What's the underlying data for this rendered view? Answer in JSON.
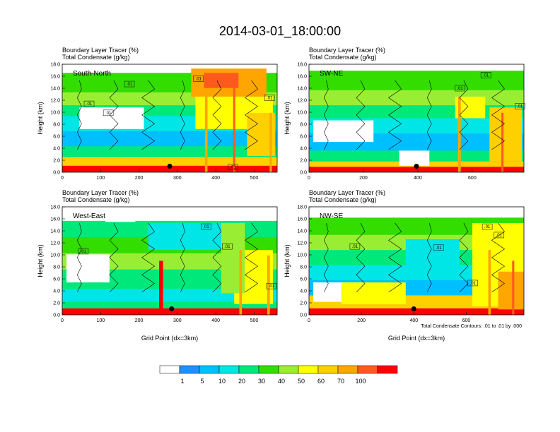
{
  "title": "2014-03-01_18:00:00",
  "colorbar": {
    "colors": [
      "#ffffff",
      "#1e90ff",
      "#00bfff",
      "#00e5e5",
      "#00e87a",
      "#33dd00",
      "#99ee33",
      "#ffff00",
      "#ffd000",
      "#ffa500",
      "#ff5a1e",
      "#ff0000"
    ],
    "labels": [
      "1",
      "5",
      "10",
      "20",
      "30",
      "40",
      "50",
      "60",
      "70",
      "100"
    ]
  },
  "chart_data": [
    {
      "type": "heatmap",
      "region_label": "South-North",
      "title_lines": [
        "Boundary Layer Tracer   (%)",
        "Total Condensate   (g/kg)"
      ],
      "ylabel": "Height (km)",
      "xlabel": "",
      "xlim": [
        0,
        560
      ],
      "ylim": [
        0,
        18
      ],
      "xticks": [
        "0",
        "100",
        "200",
        "300",
        "400",
        "500"
      ],
      "yticks": [
        "0.0",
        "2.0",
        "4.0",
        "6.0",
        "8.0",
        "10.0",
        "12.0",
        "14.0",
        "16.0",
        "18.0"
      ],
      "contour_labels": [
        {
          "text": ".01",
          "x": 120,
          "y": 9.9
        },
        {
          "text": ".01",
          "x": 175,
          "y": 14.7
        },
        {
          "text": ".01",
          "x": 70,
          "y": 11.4
        },
        {
          "text": ".01",
          "x": 355,
          "y": 15.6
        },
        {
          "text": ".01",
          "x": 540,
          "y": 12.4
        },
        {
          "text": ".01",
          "x": 445,
          "y": 0.9
        }
      ],
      "marker": {
        "x": 280,
        "y": 1.0
      }
    },
    {
      "type": "heatmap",
      "region_label": "SW-NE",
      "title_lines": [
        "Boundary Layer Tracer   (%)",
        "Total Condensate   (g/kg)"
      ],
      "ylabel": "Height (km)",
      "xlabel": "",
      "xlim": [
        0,
        790
      ],
      "ylim": [
        0,
        18
      ],
      "xticks": [
        "0",
        "200",
        "400",
        "600"
      ],
      "yticks": [
        "0.0",
        "2.0",
        "4.0",
        "6.0",
        "8.0",
        "10.0",
        "12.0",
        "14.0",
        "16.0",
        "18.0"
      ],
      "contour_labels": [
        {
          "text": ".01",
          "x": 555,
          "y": 14.0
        },
        {
          "text": ".01",
          "x": 650,
          "y": 16.2
        },
        {
          "text": ".01",
          "x": 775,
          "y": 11.0
        }
      ],
      "marker": {
        "x": 395,
        "y": 1.0
      }
    },
    {
      "type": "heatmap",
      "region_label": "West-East",
      "title_lines": [
        "Boundary Layer Tracer   (%)",
        "Total Condensate   (g/kg)"
      ],
      "ylabel": "Height (km)",
      "xlabel": "Grid Point (dx=3km)",
      "xlim": [
        0,
        560
      ],
      "ylim": [
        0,
        18
      ],
      "xticks": [
        "0",
        "100",
        "200",
        "300",
        "400",
        "500"
      ],
      "yticks": [
        "0.0",
        "2.0",
        "4.0",
        "6.0",
        "8.0",
        "10.0",
        "12.0",
        "14.0",
        "16.0",
        "18.0"
      ],
      "contour_labels": [
        {
          "text": ".01",
          "x": 55,
          "y": 10.6
        },
        {
          "text": ".01",
          "x": 375,
          "y": 14.7
        },
        {
          "text": ".01",
          "x": 430,
          "y": 11.4
        },
        {
          "text": ".01",
          "x": 545,
          "y": 4.8
        }
      ],
      "marker": {
        "x": 285,
        "y": 1.0
      }
    },
    {
      "type": "heatmap",
      "region_label": "NW-SE",
      "title_lines": [
        "Boundary Layer Tracer   (%)",
        "Total Condensate   (g/kg)"
      ],
      "ylabel": "Height (km)",
      "xlabel": "Grid Point (dx=3km)",
      "xlim": [
        0,
        820
      ],
      "ylim": [
        0,
        18
      ],
      "xticks": [
        "0",
        "200",
        "400",
        "600"
      ],
      "yticks": [
        "0.0",
        "2.0",
        "4.0",
        "6.0",
        "8.0",
        "10.0",
        "12.0",
        "14.0",
        "16.0",
        "18.0"
      ],
      "contour_labels": [
        {
          "text": ".01",
          "x": 175,
          "y": 11.4
        },
        {
          "text": ".01",
          "x": 495,
          "y": 11.2
        },
        {
          "text": ".01",
          "x": 680,
          "y": 14.7
        },
        {
          "text": ".01",
          "x": 725,
          "y": 13.3
        },
        {
          "text": ".01",
          "x": 625,
          "y": 5.3
        }
      ],
      "marker": {
        "x": 400,
        "y": 1.0
      }
    }
  ],
  "footnote": "Total Condensate Contours: .01 to .01 by .000"
}
